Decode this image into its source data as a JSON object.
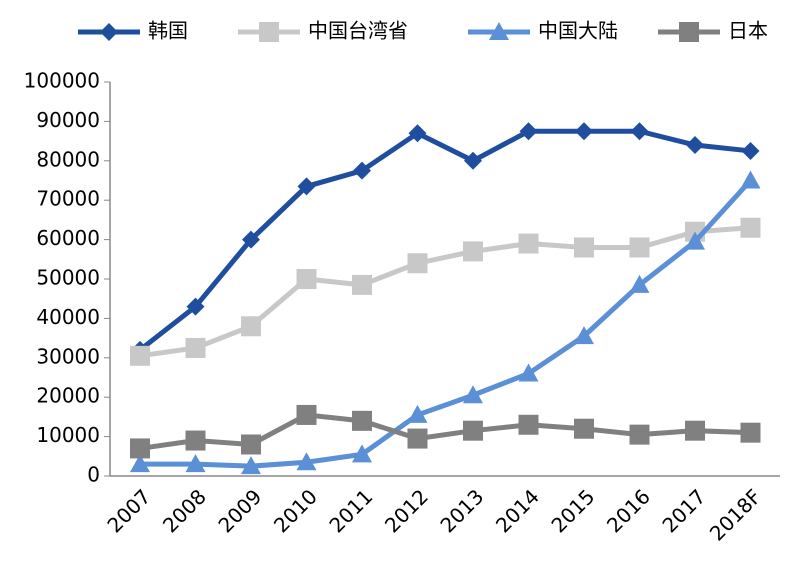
{
  "chart_data": {
    "type": "line",
    "categories": [
      "2007",
      "2008",
      "2009",
      "2010",
      "2011",
      "2012",
      "2013",
      "2014",
      "2015",
      "2016",
      "2017",
      "2018F"
    ],
    "series": [
      {
        "name": "韩国",
        "color": "#1f4e9e",
        "marker": "diamond",
        "values": [
          32000,
          43000,
          60000,
          73500,
          77500,
          87000,
          80000,
          87500,
          87500,
          87500,
          84000,
          82500
        ]
      },
      {
        "name": "中国台湾省",
        "color": "#c8c8c8",
        "marker": "square",
        "values": [
          30500,
          32500,
          38000,
          50000,
          48500,
          54000,
          57000,
          59000,
          58000,
          58000,
          62000,
          63000
        ]
      },
      {
        "name": "中国大陆",
        "color": "#5b8fd6",
        "marker": "triangle",
        "values": [
          3000,
          3000,
          2500,
          3500,
          5500,
          15500,
          20500,
          26000,
          35500,
          48500,
          59500,
          75000
        ]
      },
      {
        "name": "日本",
        "color": "#808080",
        "marker": "square",
        "values": [
          7000,
          9000,
          8000,
          15500,
          14000,
          9500,
          11500,
          13000,
          12000,
          10500,
          11500,
          11000
        ]
      }
    ],
    "ylim": [
      0,
      100000
    ],
    "yticks": [
      0,
      10000,
      20000,
      30000,
      40000,
      50000,
      60000,
      70000,
      80000,
      90000,
      100000
    ],
    "grid": false,
    "legend": "top"
  }
}
